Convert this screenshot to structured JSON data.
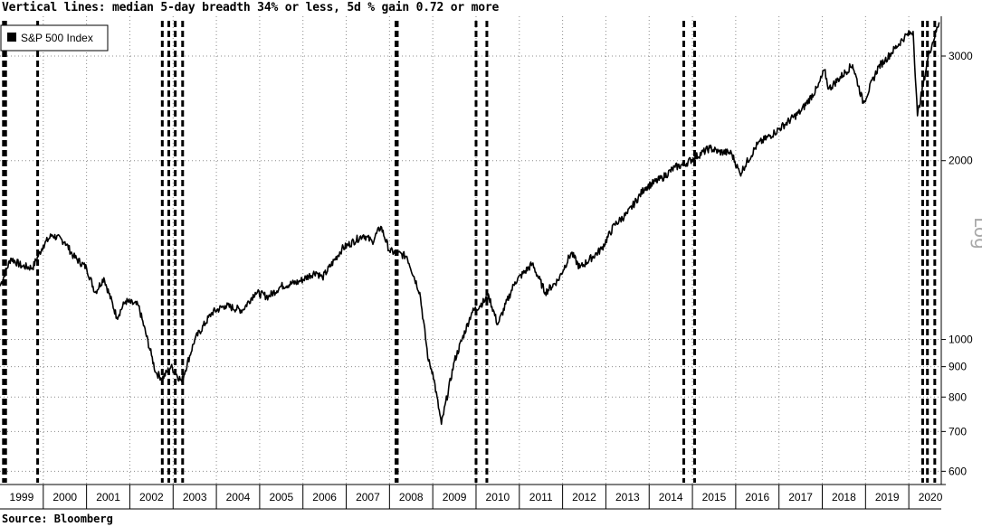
{
  "header": {
    "title": "Vertical lines: median 5-day breadth 34% or less, 5d % gain 0.72 or more"
  },
  "footer": {
    "source": "Source: Bloomberg"
  },
  "colors": {
    "series": "#000000",
    "grid": "#8c8c8c",
    "background": "#ffffff",
    "scale_label": "#a8a8a8"
  },
  "chart_data": {
    "type": "line",
    "title": "Vertical lines: median 5-day breadth 34% or less, 5d % gain 0.72 or more",
    "xlabel": "",
    "ylabel": "",
    "y_scale": "log",
    "y_scale_label": "Log",
    "y_ticks": [
      600,
      700,
      800,
      900,
      1000,
      2000,
      3000
    ],
    "ylim": [
      570,
      3500
    ],
    "xlim": [
      1999.0,
      2020.75
    ],
    "x_ticks": [
      "1999",
      "2000",
      "2001",
      "2002",
      "2003",
      "2004",
      "2005",
      "2006",
      "2007",
      "2008",
      "2009",
      "2010",
      "2011",
      "2012",
      "2013",
      "2014",
      "2015",
      "2016",
      "2017",
      "2018",
      "2019",
      "2020"
    ],
    "grid": true,
    "legend": {
      "position": "top-left",
      "entries": [
        "S&P 500 Index"
      ]
    },
    "series": [
      {
        "name": "S&P 500 Index",
        "x": [
          1999.0,
          1999.25,
          1999.5,
          1999.75,
          2000.0,
          2000.2,
          2000.5,
          2000.7,
          2001.0,
          2001.2,
          2001.4,
          2001.7,
          2001.9,
          2002.2,
          2002.5,
          2002.6,
          2002.75,
          2002.95,
          2003.2,
          2003.5,
          2003.9,
          2004.2,
          2004.6,
          2004.9,
          2005.2,
          2005.5,
          2005.9,
          2006.3,
          2006.45,
          2006.9,
          2007.4,
          2007.6,
          2007.8,
          2008.0,
          2008.4,
          2008.7,
          2008.9,
          2009.0,
          2009.2,
          2009.5,
          2009.9,
          2010.3,
          2010.5,
          2010.9,
          2011.3,
          2011.6,
          2011.9,
          2012.2,
          2012.4,
          2012.9,
          2013.2,
          2013.5,
          2013.9,
          2014.3,
          2014.6,
          2014.8,
          2015.4,
          2015.6,
          2015.9,
          2016.1,
          2016.5,
          2016.9,
          2017.5,
          2017.9,
          2018.05,
          2018.15,
          2018.7,
          2018.95,
          2019.3,
          2019.45,
          2019.9,
          2020.1,
          2020.2,
          2020.45,
          2020.7
        ],
        "values": [
          1230,
          1370,
          1330,
          1320,
          1440,
          1500,
          1460,
          1380,
          1320,
          1200,
          1270,
          1090,
          1160,
          1140,
          940,
          880,
          860,
          900,
          850,
          1000,
          1110,
          1140,
          1120,
          1200,
          1180,
          1230,
          1250,
          1300,
          1270,
          1420,
          1500,
          1460,
          1550,
          1410,
          1380,
          1200,
          920,
          880,
          720,
          920,
          1110,
          1180,
          1060,
          1250,
          1340,
          1200,
          1260,
          1400,
          1320,
          1420,
          1560,
          1630,
          1800,
          1870,
          1950,
          1970,
          2100,
          2070,
          2060,
          1900,
          2130,
          2230,
          2420,
          2660,
          2840,
          2640,
          2900,
          2500,
          2880,
          2950,
          3230,
          3300,
          2380,
          3000,
          3420
        ]
      }
    ],
    "vertical_lines": [
      1999.08,
      1999.13,
      1999.87,
      2002.75,
      2002.9,
      2003.05,
      2003.22,
      2008.15,
      2008.18,
      2010.0,
      2010.25,
      2014.8,
      2015.05,
      2020.32,
      2020.43,
      2020.6
    ]
  }
}
